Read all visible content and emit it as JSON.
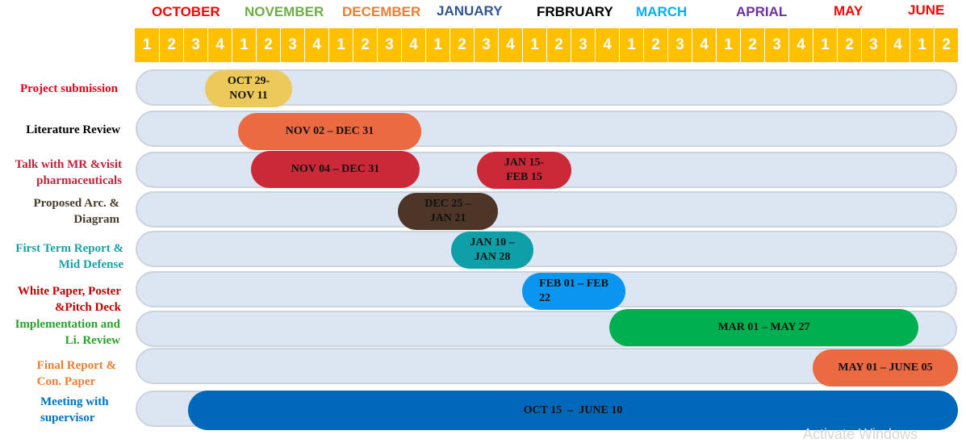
{
  "months": [
    {
      "label": "OCTOBER",
      "color": "#ff0000"
    },
    {
      "label": "NOVEMBER",
      "color": "#70ad47"
    },
    {
      "label": "DECEMBER",
      "color": "#ed7d31"
    },
    {
      "label": "JANUARY",
      "color": "#2f5597"
    },
    {
      "label": "FRBRUARY",
      "color": "#000000"
    },
    {
      "label": "MARCH",
      "color": "#00b0f0"
    },
    {
      "label": "APRIAL",
      "color": "#7030a0"
    },
    {
      "label": "MAY",
      "color": "#ff0000"
    },
    {
      "label": "JUNE",
      "color": "#ff0000"
    }
  ],
  "weeks": [
    "1",
    "2",
    "3",
    "4",
    "1",
    "2",
    "3",
    "4",
    "1",
    "2",
    "3",
    "4",
    "1",
    "2",
    "3",
    "4",
    "1",
    "2",
    "3",
    "4",
    "1",
    "2",
    "3",
    "4",
    "1",
    "2",
    "3",
    "4",
    "1",
    "2",
    "3",
    "4",
    "1",
    "2"
  ],
  "tasks": [
    {
      "label": "Project submission",
      "color": "#e3001b",
      "bars": [
        {
          "text": "OCT 29-\nNOV 11",
          "color": "#ecc95a"
        }
      ]
    },
    {
      "label": "Literature Review",
      "color": "#000000",
      "bars": [
        {
          "text": "NOV 02 – DEC 31",
          "color": "#eb6a41"
        }
      ]
    },
    {
      "label": "Talk with MR &visit\npharmaceuticals",
      "color": "#c4203a",
      "bars": [
        {
          "text": "NOV 04 – DEC 31",
          "color": "#cb2838"
        },
        {
          "text": "JAN 15-\nFEB 15",
          "color": "#cb2838"
        }
      ]
    },
    {
      "label": "Proposed Arc. &\nDiagram",
      "color": "#4b3a2a",
      "bars": [
        {
          "text": "DEC 25 –\nJAN 21",
          "color": "#4d3628"
        }
      ]
    },
    {
      "label": "First Term Report &\nMid Defense",
      "color": "#17a2a8",
      "bars": [
        {
          "text": "JAN 10 –\nJAN 28",
          "color": "#0e9fa8"
        }
      ]
    },
    {
      "label": "White Paper, Poster\n&Pitch Deck",
      "color": "#c00000",
      "bars": [
        {
          "text": "FEB 01 – FEB\n22",
          "color": "#0a95f0"
        }
      ]
    },
    {
      "label": "Implementation and\nLi. Review",
      "color": "#2ca02c",
      "bars": [
        {
          "text": "MAR 01 – MAY 27",
          "color": "#00b050"
        }
      ]
    },
    {
      "label": "Final Report &\nCon. Paper",
      "color": "#ed7d31",
      "bars": [
        {
          "text": "MAY 01 – JUNE 05",
          "color": "#eb6a41"
        }
      ]
    },
    {
      "label": "Meeting with\nsupervisor",
      "color": "#0070c0",
      "bars": [
        {
          "text": "OCT 15  –  JUNE 10",
          "color": "#0068b8"
        }
      ]
    }
  ],
  "watermark": "Activate Windows"
}
